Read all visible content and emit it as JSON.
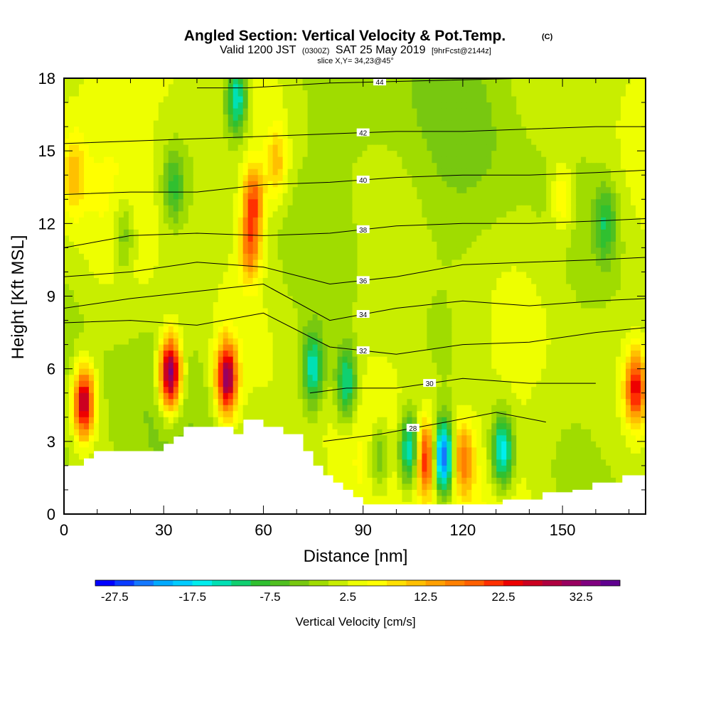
{
  "chart_data": {
    "type": "contour",
    "title": "Angled Section: Vertical Velocity & Pot.Temp.",
    "title_badge": "(C)",
    "subtitle_parts": [
      "Valid 1200 JST",
      "(0300Z)",
      "SAT 25 May 2019",
      "[9hrFcst@2144z]"
    ],
    "slice_text": "slice X,Y= 34,23@45°",
    "xlabel": "Distance [nm]",
    "ylabel": "Height [Kft MSL]",
    "xlim": [
      0,
      175
    ],
    "ylim": [
      0,
      18
    ],
    "x_ticks": [
      0,
      30,
      60,
      90,
      120,
      150
    ],
    "y_ticks": [
      0,
      3,
      6,
      9,
      12,
      15,
      18
    ],
    "grid": false,
    "colorbar": {
      "label": "Vertical Velocity [cm/s]",
      "levels": [
        -30,
        -27.5,
        -25,
        -22.5,
        -20,
        -17.5,
        -15,
        -12.5,
        -10,
        -7.5,
        -5,
        -2.5,
        0,
        2.5,
        5,
        7.5,
        10,
        12.5,
        15,
        17.5,
        20,
        22.5,
        25,
        27.5,
        30,
        32.5,
        35,
        37.5
      ],
      "tick_labels": [
        "-27.5",
        "-17.5",
        "-7.5",
        "2.5",
        "12.5",
        "22.5",
        "32.5"
      ],
      "colors": [
        "#0000ff",
        "#0a3cff",
        "#1478ff",
        "#00aaff",
        "#00ccff",
        "#00eeee",
        "#00e0b4",
        "#10d070",
        "#30c030",
        "#50c020",
        "#78c810",
        "#a0dc00",
        "#c8ee00",
        "#eeff00",
        "#ffff00",
        "#ffe000",
        "#ffc000",
        "#ffa000",
        "#ff8000",
        "#ff6000",
        "#ff3000",
        "#ee0000",
        "#cc0020",
        "#b00040",
        "#990060",
        "#800080",
        "#600090"
      ]
    },
    "pot_temp_isentropes": [
      {
        "theta": 28,
        "x": [
          78,
          95,
          115,
          130,
          145
        ],
        "y": [
          3.0,
          3.3,
          3.8,
          4.2,
          3.8
        ]
      },
      {
        "theta": 30,
        "x": [
          74,
          85,
          100,
          120,
          140,
          160
        ],
        "y": [
          5.0,
          5.2,
          5.2,
          5.6,
          5.4,
          5.4
        ]
      },
      {
        "theta": 32,
        "x": [
          0,
          20,
          40,
          60,
          80,
          100,
          120,
          140,
          160,
          175
        ],
        "y": [
          7.9,
          8.0,
          7.8,
          8.3,
          6.9,
          6.6,
          7.0,
          7.1,
          7.5,
          7.7
        ]
      },
      {
        "theta": 34,
        "x": [
          0,
          20,
          40,
          60,
          80,
          100,
          120,
          140,
          160,
          175
        ],
        "y": [
          8.5,
          8.9,
          9.2,
          9.5,
          8.0,
          8.5,
          8.8,
          8.6,
          8.8,
          8.9
        ]
      },
      {
        "theta": 36,
        "x": [
          0,
          20,
          40,
          60,
          80,
          100,
          120,
          140,
          160,
          175
        ],
        "y": [
          9.8,
          10.0,
          10.4,
          10.2,
          9.5,
          9.8,
          10.3,
          10.4,
          10.5,
          10.6
        ]
      },
      {
        "theta": 38,
        "x": [
          0,
          20,
          40,
          60,
          80,
          100,
          120,
          140,
          160,
          175
        ],
        "y": [
          11.0,
          11.5,
          11.6,
          11.5,
          11.6,
          11.9,
          12.0,
          12.0,
          12.1,
          12.2
        ]
      },
      {
        "theta": 40,
        "x": [
          0,
          20,
          40,
          60,
          80,
          100,
          120,
          140,
          160,
          175
        ],
        "y": [
          13.2,
          13.3,
          13.3,
          13.6,
          13.7,
          13.9,
          14.0,
          14.0,
          14.1,
          14.2
        ]
      },
      {
        "theta": 42,
        "x": [
          0,
          20,
          40,
          60,
          80,
          100,
          120,
          140,
          160,
          175
        ],
        "y": [
          15.3,
          15.4,
          15.5,
          15.6,
          15.7,
          15.8,
          15.8,
          15.9,
          16.0,
          16.0
        ]
      },
      {
        "theta": 44,
        "x": [
          40,
          55,
          80,
          110,
          140,
          175
        ],
        "y": [
          17.6,
          17.6,
          17.8,
          17.9,
          18.0,
          18.0
        ]
      }
    ],
    "terrain": {
      "x": [
        0,
        3,
        6,
        9,
        24,
        30,
        33,
        36,
        39,
        42,
        48,
        51,
        54,
        60,
        66,
        69,
        72,
        75,
        78,
        81,
        84,
        87,
        90,
        102,
        108,
        126,
        132,
        144,
        150,
        153,
        159,
        162,
        168,
        171,
        175
      ],
      "y": [
        2.0,
        2.0,
        2.3,
        2.6,
        2.6,
        2.9,
        3.2,
        3.6,
        3.6,
        3.6,
        3.6,
        3.3,
        3.9,
        3.6,
        3.3,
        3.3,
        2.6,
        2.0,
        1.6,
        1.3,
        1.0,
        0.7,
        0.4,
        0.4,
        0.4,
        0.4,
        0.6,
        0.9,
        0.9,
        1.0,
        1.3,
        1.3,
        1.6,
        1.6,
        1.6
      ]
    },
    "velocity_features": [
      {
        "x": 6,
        "y": 4.6,
        "w": 28
      },
      {
        "x": 32,
        "y": 5.8,
        "w": 35
      },
      {
        "x": 49,
        "y": 5.6,
        "w": 30
      },
      {
        "x": 57,
        "y": 13.0,
        "w": 17
      },
      {
        "x": 56,
        "y": 11.0,
        "w": 15
      },
      {
        "x": 64,
        "y": 14.5,
        "w": 10
      },
      {
        "x": 104,
        "y": 2.6,
        "w": -20
      },
      {
        "x": 114,
        "y": 2.3,
        "w": -30
      },
      {
        "x": 109,
        "y": 2.3,
        "w": 22
      },
      {
        "x": 120,
        "y": 2.3,
        "w": 15
      },
      {
        "x": 132,
        "y": 2.6,
        "w": -20
      },
      {
        "x": 52,
        "y": 17.2,
        "w": -18
      },
      {
        "x": 75,
        "y": 6.0,
        "w": -16
      },
      {
        "x": 85,
        "y": 5.4,
        "w": -16
      },
      {
        "x": 95,
        "y": 2.3,
        "w": -10
      },
      {
        "x": 172,
        "y": 5.2,
        "w": 22
      },
      {
        "x": 3,
        "y": 14.0,
        "w": 8
      },
      {
        "x": 18,
        "y": 11.5,
        "w": -8
      },
      {
        "x": 33,
        "y": 13.5,
        "w": -10
      },
      {
        "x": 150,
        "y": 13.0,
        "w": 8
      },
      {
        "x": 163,
        "y": 12.0,
        "w": -10
      }
    ]
  }
}
